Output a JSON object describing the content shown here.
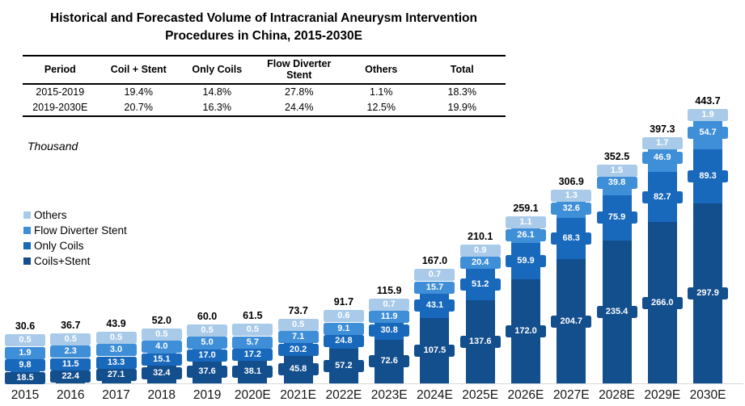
{
  "title": {
    "line1": "Historical and Forecasted Volume of Intracranial Aneurysm Intervention",
    "line2": "Procedures in China, 2015-2030E"
  },
  "table": {
    "headers": [
      "Period",
      "Coil + Stent",
      "Only Coils",
      "Flow Diverter Stent",
      "Others",
      "Total"
    ],
    "rows": [
      [
        "2015-2019",
        "19.4%",
        "14.8%",
        "27.8%",
        "1.1%",
        "18.3%"
      ],
      [
        "2019-2030E",
        "20.7%",
        "16.3%",
        "24.4%",
        "12.5%",
        "19.9%"
      ]
    ]
  },
  "chart_data": {
    "type": "bar",
    "stacked": true,
    "title": "Historical and Forecasted Volume of Intracranial Aneurysm Intervention Procedures in China, 2015-2030E",
    "unit_label": "Thousand",
    "xlabel": "",
    "ylabel": "Thousand",
    "ylim": [
      0,
      450
    ],
    "grid": false,
    "legend_position": "middle-left",
    "legend_order_top_to_bottom": [
      "Others",
      "Flow Diverter Stent",
      "Only Coils",
      "Coils+Stent"
    ],
    "categories": [
      "2015",
      "2016",
      "2017",
      "2018",
      "2019",
      "2020E",
      "2021E",
      "2022E",
      "2023E",
      "2024E",
      "2025E",
      "2026E",
      "2027E",
      "2028E",
      "2029E",
      "2030E"
    ],
    "series": [
      {
        "key": "coils-stent",
        "name": "Coils+Stent",
        "color": "#134e8d",
        "values": [
          18.5,
          22.4,
          27.1,
          32.4,
          37.6,
          38.1,
          45.8,
          57.2,
          72.6,
          107.5,
          137.6,
          172.0,
          204.7,
          235.4,
          266.0,
          297.9
        ]
      },
      {
        "key": "only-coils",
        "name": "Only Coils",
        "color": "#1868bc",
        "values": [
          9.8,
          11.5,
          13.3,
          15.1,
          17.0,
          17.2,
          20.2,
          24.8,
          30.8,
          43.1,
          51.2,
          59.9,
          68.3,
          75.9,
          82.7,
          89.3
        ]
      },
      {
        "key": "flow-diverter-stent",
        "name": "Flow Diverter Stent",
        "color": "#3f8ed8",
        "values": [
          1.9,
          2.3,
          3.0,
          4.0,
          5.0,
          5.7,
          7.1,
          9.1,
          11.9,
          15.7,
          20.4,
          26.1,
          32.6,
          39.8,
          46.9,
          54.7
        ]
      },
      {
        "key": "others",
        "name": "Others",
        "color": "#a9cbe9",
        "values": [
          0.5,
          0.5,
          0.5,
          0.5,
          0.5,
          0.5,
          0.5,
          0.6,
          0.7,
          0.7,
          0.9,
          1.1,
          1.3,
          1.5,
          1.7,
          1.9
        ]
      }
    ],
    "totals": [
      30.6,
      36.7,
      43.9,
      52.0,
      60.0,
      61.5,
      73.7,
      91.7,
      115.9,
      167.0,
      210.1,
      259.1,
      306.9,
      352.5,
      397.3,
      443.7
    ]
  }
}
